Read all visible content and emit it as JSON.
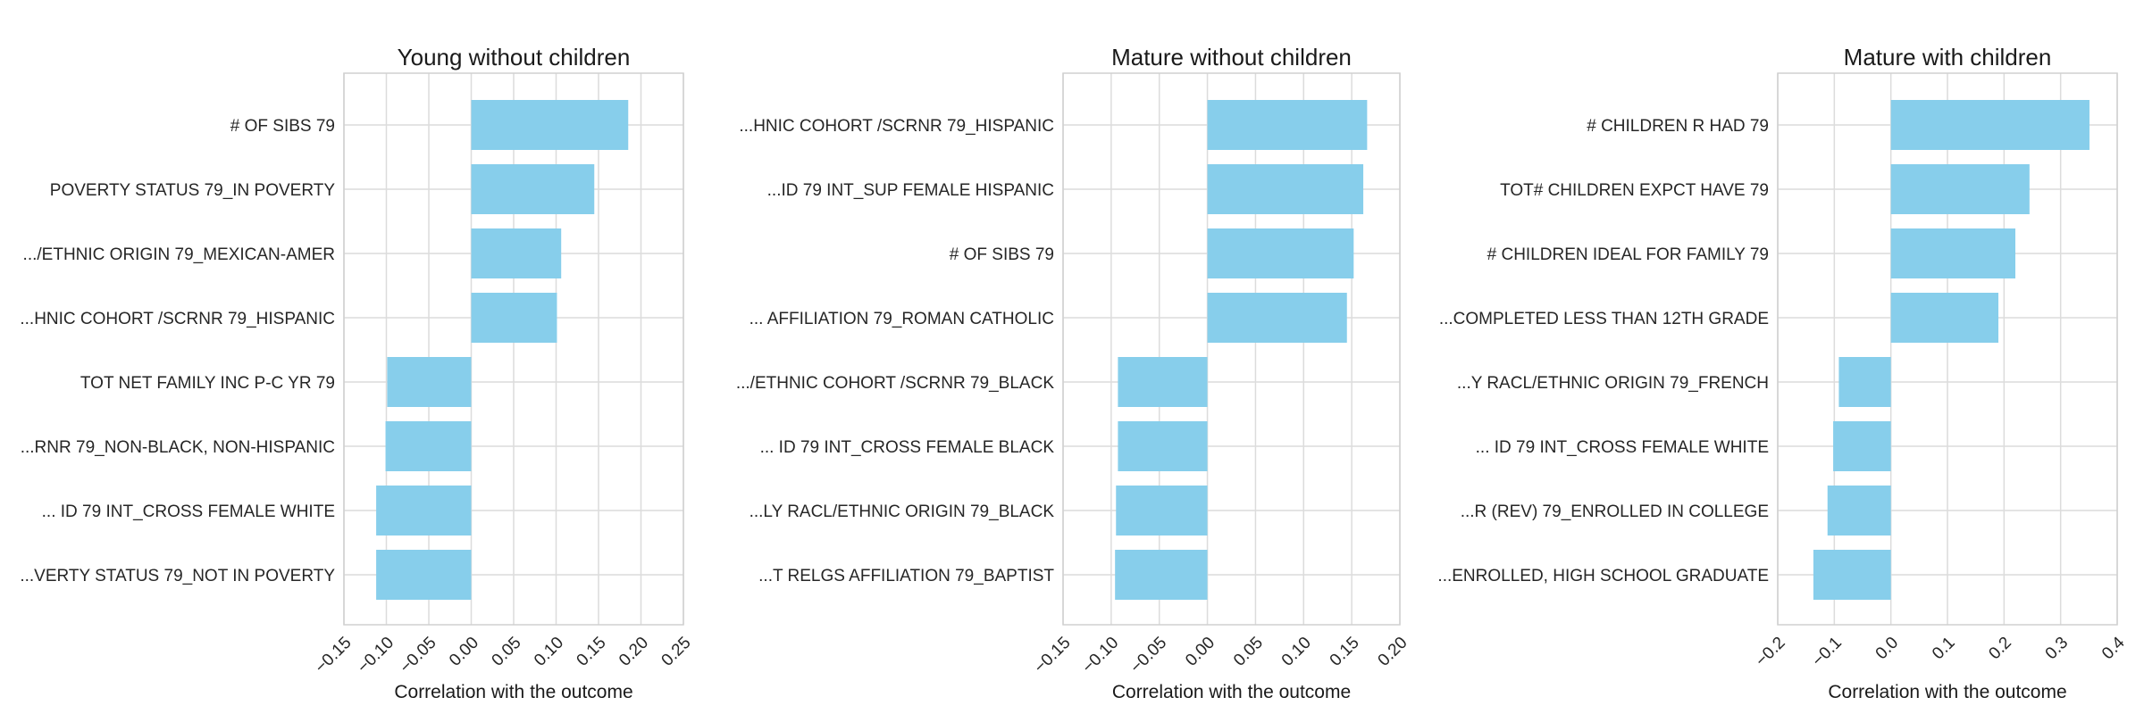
{
  "chart_data": [
    {
      "type": "bar",
      "orientation": "horizontal",
      "title": "Young without children",
      "xlabel": "Correlation with the outcome",
      "ylabel": "",
      "xlim": [
        -0.15,
        0.25
      ],
      "xticks": [
        -0.15,
        -0.1,
        -0.05,
        0.0,
        0.05,
        0.1,
        0.15,
        0.2,
        0.25
      ],
      "xtick_labels": [
        "−0.15",
        "−0.10",
        "−0.05",
        "0.00",
        "0.05",
        "0.10",
        "0.15",
        "0.20",
        "0.25"
      ],
      "grid": true,
      "bar_color": "#87ceeb",
      "categories": [
        "# OF SIBS 79",
        "POVERTY STATUS 79_IN POVERTY",
        ".../ETHNIC ORIGIN 79_MEXICAN-AMER",
        "...HNIC COHORT /SCRNR 79_HISPANIC",
        "TOT NET FAMILY INC P-C YR 79",
        "...RNR 79_NON-BLACK, NON-HISPANIC",
        "... ID  79 INT_CROSS FEMALE WHITE",
        "...VERTY STATUS 79_NOT IN POVERTY"
      ],
      "values": [
        0.185,
        0.145,
        0.106,
        0.101,
        -0.099,
        -0.101,
        -0.112,
        -0.112
      ]
    },
    {
      "type": "bar",
      "orientation": "horizontal",
      "title": "Mature without children",
      "xlabel": "Correlation with the outcome",
      "ylabel": "",
      "xlim": [
        -0.15,
        0.2
      ],
      "xticks": [
        -0.15,
        -0.1,
        -0.05,
        0.0,
        0.05,
        0.1,
        0.15,
        0.2
      ],
      "xtick_labels": [
        "−0.15",
        "−0.10",
        "−0.05",
        "0.00",
        "0.05",
        "0.10",
        "0.15",
        "0.20"
      ],
      "grid": true,
      "bar_color": "#87ceeb",
      "categories": [
        "...HNIC COHORT /SCRNR 79_HISPANIC",
        "...ID  79 INT_SUP FEMALE HISPANIC",
        "# OF SIBS 79",
        "... AFFILIATION 79_ROMAN CATHOLIC",
        ".../ETHNIC COHORT /SCRNR 79_BLACK",
        "... ID  79 INT_CROSS FEMALE BLACK",
        "...LY RACL/ETHNIC ORIGIN 79_BLACK",
        "...T RELGS AFFILIATION 79_BAPTIST"
      ],
      "values": [
        0.166,
        0.162,
        0.152,
        0.145,
        -0.093,
        -0.093,
        -0.095,
        -0.096
      ]
    },
    {
      "type": "bar",
      "orientation": "horizontal",
      "title": "Mature with children",
      "xlabel": "Correlation with the outcome",
      "ylabel": "",
      "xlim": [
        -0.2,
        0.4
      ],
      "xticks": [
        -0.2,
        -0.1,
        0.0,
        0.1,
        0.2,
        0.3,
        0.4
      ],
      "xtick_labels": [
        "−0.2",
        "−0.1",
        "0.0",
        "0.1",
        "0.2",
        "0.3",
        "0.4"
      ],
      "grid": true,
      "bar_color": "#87ceeb",
      "categories": [
        "# CHILDREN R HAD 79",
        "TOT# CHILDREN EXPCT HAVE 79",
        "# CHILDREN IDEAL FOR FAMILY 79",
        "...COMPLETED LESS THAN 12TH GRADE",
        "...Y RACL/ETHNIC ORIGIN 79_FRENCH",
        "... ID  79 INT_CROSS FEMALE WHITE",
        "...R (REV) 79_ENROLLED IN COLLEGE",
        "...ENROLLED, HIGH SCHOOL GRADUATE"
      ],
      "values": [
        0.351,
        0.245,
        0.22,
        0.19,
        -0.092,
        -0.102,
        -0.112,
        -0.137
      ]
    }
  ]
}
